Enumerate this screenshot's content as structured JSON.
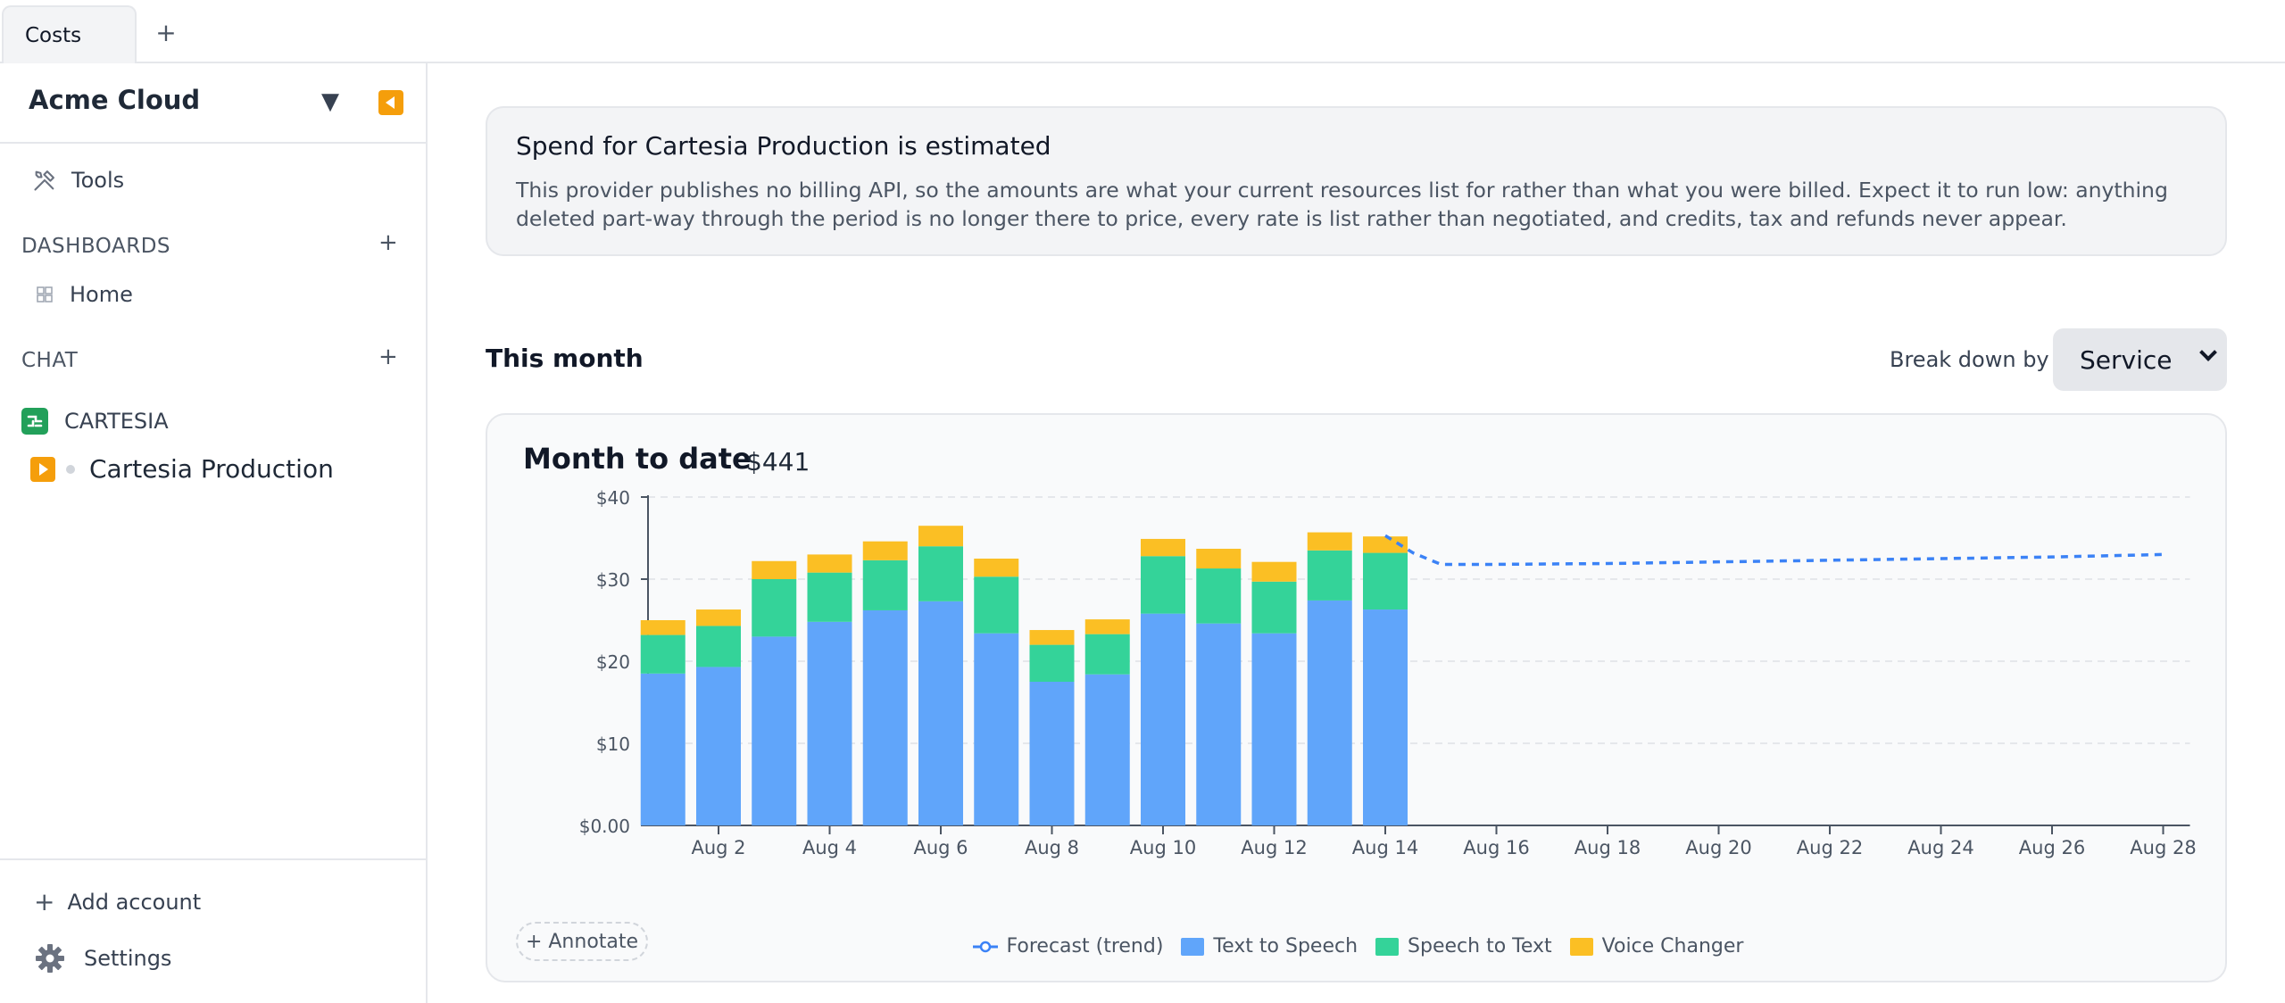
{
  "tabs": [
    {
      "label": "Costs"
    }
  ],
  "sidebar": {
    "account_title": "Acme Cloud",
    "tools_label": "Tools",
    "dashboards_label": "DASHBOARDS",
    "dashboards": [
      {
        "label": "Home"
      }
    ],
    "chat_label": "CHAT",
    "provider_label": "CARTESIA",
    "provider_account": "Cartesia Production",
    "add_account_label": "Add account",
    "settings_label": "Settings"
  },
  "notice": {
    "title": "Spend for Cartesia Production is estimated",
    "body": "This provider publishes no billing API, so the amounts are what your current resources list for rather than what you were billed. Expect it to run low: anything deleted part-way through the period is no longer there to price, every rate is list rather than negotiated, and credits, tax and refunds never appear."
  },
  "main": {
    "section_title": "This month",
    "breakdown_label": "Break down by",
    "breakdown_value": "Service",
    "chart_title": "Month to date",
    "chart_total": "$441",
    "annotate_label": "+ Annotate"
  },
  "colors": {
    "text_to_speech": "#60a5fa",
    "speech_to_text": "#34d399",
    "voice_changer": "#fbbf24",
    "forecast": "#3b82f6",
    "accent": "#f59e0b"
  },
  "chart_data": {
    "type": "bar",
    "stacked": true,
    "x_days": [
      1,
      2,
      3,
      4,
      5,
      6,
      7,
      8,
      9,
      10,
      11,
      12,
      13,
      14
    ],
    "series": [
      {
        "name": "Text to Speech",
        "values": [
          18.5,
          19.3,
          23.0,
          24.8,
          26.2,
          27.3,
          23.4,
          17.5,
          18.4,
          25.8,
          24.6,
          23.4,
          27.4,
          26.3
        ]
      },
      {
        "name": "Speech to Text",
        "values": [
          4.7,
          5.0,
          7.0,
          6.0,
          6.1,
          6.7,
          6.9,
          4.5,
          4.9,
          7.0,
          6.7,
          6.3,
          6.1,
          6.9
        ]
      },
      {
        "name": "Voice Changer",
        "values": [
          1.8,
          2.0,
          2.2,
          2.2,
          2.3,
          2.5,
          2.2,
          1.8,
          1.8,
          2.1,
          2.4,
          2.4,
          2.2,
          2.0
        ]
      }
    ],
    "forecast": {
      "name": "Forecast (trend)",
      "x": [
        14,
        14.5,
        15,
        16,
        18,
        20,
        22,
        24,
        26,
        28
      ],
      "y": [
        35.3,
        33.2,
        31.8,
        31.8,
        31.9,
        32.1,
        32.3,
        32.5,
        32.7,
        33.0
      ]
    },
    "x_ticks": [
      {
        "day": 2,
        "label": "Aug 2"
      },
      {
        "day": 4,
        "label": "Aug 4"
      },
      {
        "day": 6,
        "label": "Aug 6"
      },
      {
        "day": 8,
        "label": "Aug 8"
      },
      {
        "day": 10,
        "label": "Aug 10"
      },
      {
        "day": 12,
        "label": "Aug 12"
      },
      {
        "day": 14,
        "label": "Aug 14"
      },
      {
        "day": 16,
        "label": "Aug 16"
      },
      {
        "day": 18,
        "label": "Aug 18"
      },
      {
        "day": 20,
        "label": "Aug 20"
      },
      {
        "day": 22,
        "label": "Aug 22"
      },
      {
        "day": 24,
        "label": "Aug 24"
      },
      {
        "day": 26,
        "label": "Aug 26"
      },
      {
        "day": 28,
        "label": "Aug 28"
      }
    ],
    "y_ticks": [
      {
        "value": 0,
        "label": "$0.00"
      },
      {
        "value": 10,
        "label": "$10"
      },
      {
        "value": 20,
        "label": "$20"
      },
      {
        "value": 30,
        "label": "$30"
      },
      {
        "value": 40,
        "label": "$40"
      }
    ],
    "ylim": [
      0,
      40
    ],
    "xlim": [
      0.5,
      28.5
    ],
    "grid": true,
    "legend_position": "bottom"
  }
}
